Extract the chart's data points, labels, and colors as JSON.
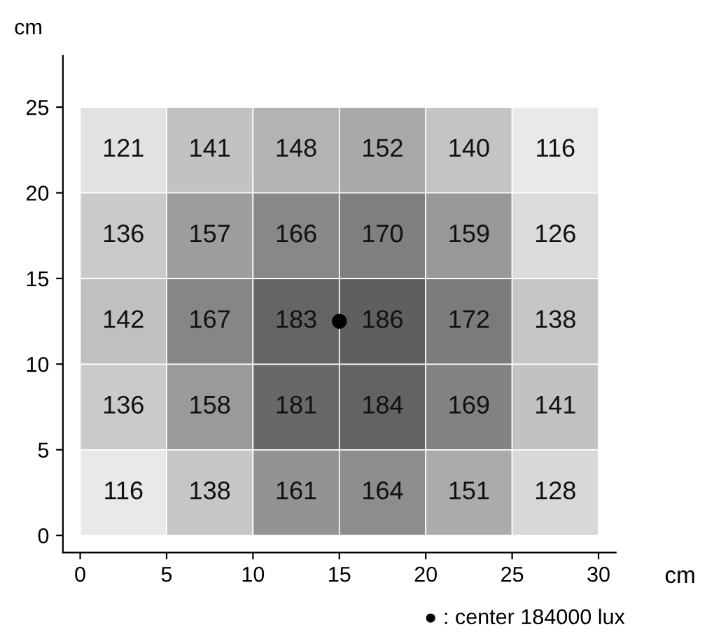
{
  "chart_data": {
    "type": "heatmap",
    "xlabel": "cm",
    "ylabel": "cm",
    "cells": [
      [
        121,
        141,
        148,
        152,
        140,
        116
      ],
      [
        136,
        157,
        166,
        170,
        159,
        126
      ],
      [
        142,
        167,
        183,
        186,
        172,
        138
      ],
      [
        136,
        158,
        181,
        184,
        169,
        141
      ],
      [
        116,
        138,
        161,
        164,
        151,
        128
      ]
    ],
    "data_labels": true,
    "xlim": [
      -1,
      31
    ],
    "ylim": [
      -1,
      28
    ],
    "xticks": [
      0,
      5,
      10,
      15,
      20,
      25,
      30
    ],
    "yticks": [
      0,
      5,
      10,
      15,
      20,
      25
    ],
    "series": [
      {
        "type": "scatter",
        "x": [
          15
        ],
        "values": [
          12.5
        ],
        "value_labels": [
          null
        ],
        "color": "#000000"
      }
    ],
    "annotations": [
      "● : center 184000 lux"
    ]
  }
}
